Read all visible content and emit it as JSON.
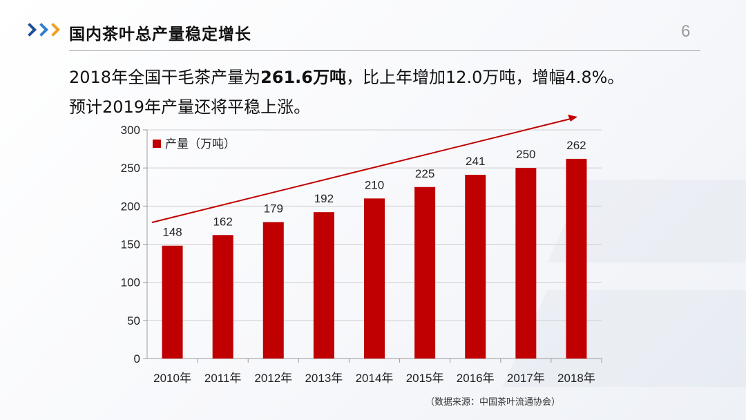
{
  "header": {
    "title": "国内茶叶总产量稳定增长",
    "page_number": "6",
    "chevron_colors": [
      "#1f4e96",
      "#2e7fd0",
      "#f0a020"
    ]
  },
  "summary": {
    "line1_pre": "2018年全国干毛茶产量为",
    "line1_bold": "261.6万吨",
    "line1_post": "，比上年增加12.0万吨，增幅4.8%。",
    "line2": "预计2019年产量还将平稳上涨。"
  },
  "chart_data": {
    "type": "bar",
    "categories": [
      "2010年",
      "2011年",
      "2012年",
      "2013年",
      "2014年",
      "2015年",
      "2016年",
      "2017年",
      "2018年"
    ],
    "series": [
      {
        "name": "产量（万吨）",
        "values": [
          148,
          162,
          179,
          192,
          210,
          225,
          241,
          250,
          262
        ],
        "color": "#c00000"
      }
    ],
    "data_labels": [
      "148",
      "162",
      "179",
      "192",
      "210",
      "225",
      "241",
      "250",
      "262"
    ],
    "ylim": [
      0,
      300
    ],
    "yticks": [
      0,
      50,
      100,
      150,
      200,
      250,
      300
    ],
    "grid": true,
    "legend_position": "top-left",
    "trend_arrow": true,
    "trend_color": "#c00000"
  },
  "source_note": "（数据来源：中国茶叶流通协会）"
}
